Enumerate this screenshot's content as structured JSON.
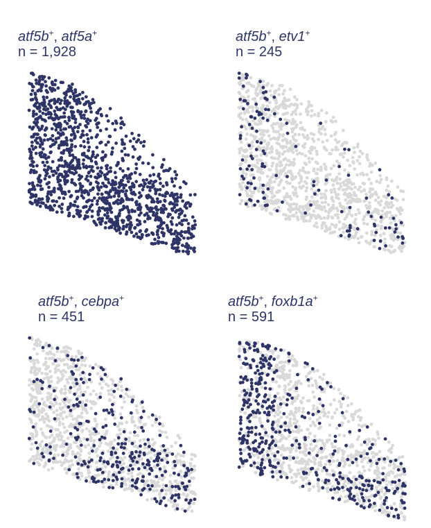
{
  "chart_data": [
    {
      "type": "scatter",
      "genes": [
        "atf5b",
        "atf5a"
      ],
      "count_text": "n = 1,928",
      "highlighted_count": 1928,
      "highlight_color": "#2e3466",
      "background_color": "#d9d9d9"
    },
    {
      "type": "scatter",
      "genes": [
        "atf5b",
        "etv1"
      ],
      "count_text": "n = 245",
      "highlighted_count": 245,
      "highlight_color": "#2e3466",
      "background_color": "#d9d9d9"
    },
    {
      "type": "scatter",
      "genes": [
        "atf5b",
        "cebpa"
      ],
      "count_text": "n = 451",
      "highlighted_count": 451,
      "highlight_color": "#2e3466",
      "background_color": "#d9d9d9"
    },
    {
      "type": "scatter",
      "genes": [
        "atf5b",
        "foxb1a"
      ],
      "count_text": "n = 591",
      "highlighted_count": 591,
      "highlight_color": "#2e3466",
      "background_color": "#d9d9d9"
    }
  ]
}
